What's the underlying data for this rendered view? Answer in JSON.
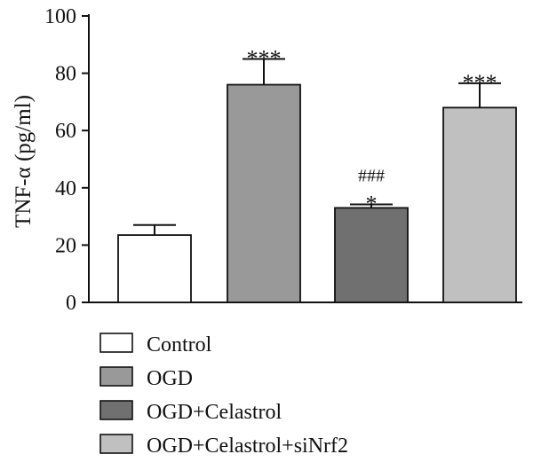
{
  "chart_data": {
    "type": "bar",
    "ylabel": "TNF-α (pg/ml)",
    "ylim": [
      0,
      100
    ],
    "yticks": [
      0,
      20,
      40,
      60,
      80,
      100
    ],
    "legend_position": "bottom-left",
    "grid": false,
    "bars": [
      {
        "name": "Control",
        "value": 23.5,
        "error": 3.5,
        "color": "#ffffff",
        "annotations": []
      },
      {
        "name": "OGD",
        "value": 76,
        "error": 9,
        "color": "#999999",
        "annotations": [
          "***"
        ]
      },
      {
        "name": "OGD+Celastrol",
        "value": 33,
        "error": 1.2,
        "color": "#707070",
        "annotations": [
          "*",
          "###"
        ]
      },
      {
        "name": "OGD+Celastrol+siNrf2",
        "value": 68,
        "error": 8.5,
        "color": "#c0c0c0",
        "annotations": [
          "***"
        ]
      }
    ]
  }
}
